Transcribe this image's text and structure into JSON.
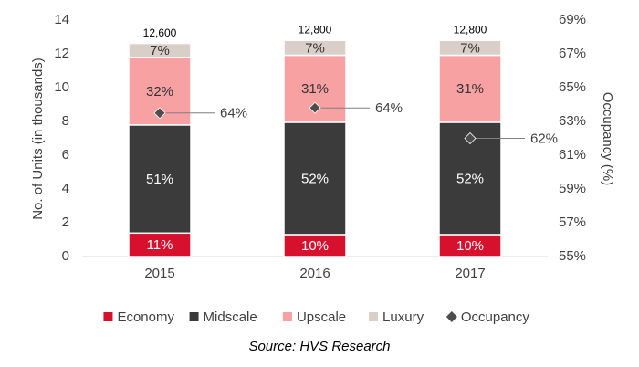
{
  "chart_data": {
    "type": "bar",
    "stacked": true,
    "categories": [
      "2015",
      "2016",
      "2017"
    ],
    "series": [
      {
        "name": "Economy",
        "color": "#d7102e",
        "label_color": "#ffffff",
        "values": [
          1.39,
          1.3,
          1.3
        ],
        "value_labels": [
          "11%",
          "10%",
          "10%"
        ]
      },
      {
        "name": "Midscale",
        "color": "#3b3b3b",
        "label_color": "#ffffff",
        "values": [
          6.4,
          6.65,
          6.65
        ],
        "value_labels": [
          "51%",
          "52%",
          "52%"
        ]
      },
      {
        "name": "Upscale",
        "color": "#f7a1a3",
        "label_color": "#333333",
        "values": [
          4.0,
          3.97,
          3.97
        ],
        "value_labels": [
          "32%",
          "31%",
          "31%"
        ]
      },
      {
        "name": "Luxury",
        "color": "#d9cfc8",
        "label_color": "#333333",
        "values": [
          0.83,
          0.88,
          0.88
        ],
        "value_labels": [
          "7%",
          "7%",
          "7%"
        ]
      },
      {
        "name": "Occupancy",
        "type": "line",
        "marker": "diamond",
        "axis": "y2",
        "color": "#4d4d4d",
        "values": [
          63.5,
          63.8,
          62.0
        ],
        "value_labels": [
          "64%",
          "64%",
          "62%"
        ]
      }
    ],
    "totals": [
      {
        "value": 12.6,
        "label": "12,600"
      },
      {
        "value": 12.8,
        "label": "12,800"
      },
      {
        "value": 12.8,
        "label": "12,800"
      }
    ],
    "ylabel": "No. of Units (in thousands)",
    "y2label": "Occupancy (%)",
    "ylim": [
      0,
      14
    ],
    "yticks": [
      0,
      2,
      4,
      6,
      8,
      10,
      12,
      14
    ],
    "y2lim": [
      55,
      69
    ],
    "y2ticks": [
      {
        "value": 55,
        "label": "55%"
      },
      {
        "value": 57,
        "label": "57%"
      },
      {
        "value": 59,
        "label": "59%"
      },
      {
        "value": 61,
        "label": "61%"
      },
      {
        "value": 63,
        "label": "63%"
      },
      {
        "value": 65,
        "label": "65%"
      },
      {
        "value": 67,
        "label": "67%"
      },
      {
        "value": 69,
        "label": "69%"
      }
    ],
    "grid": false,
    "legend": "bottom",
    "source": "Source: HVS Research"
  }
}
